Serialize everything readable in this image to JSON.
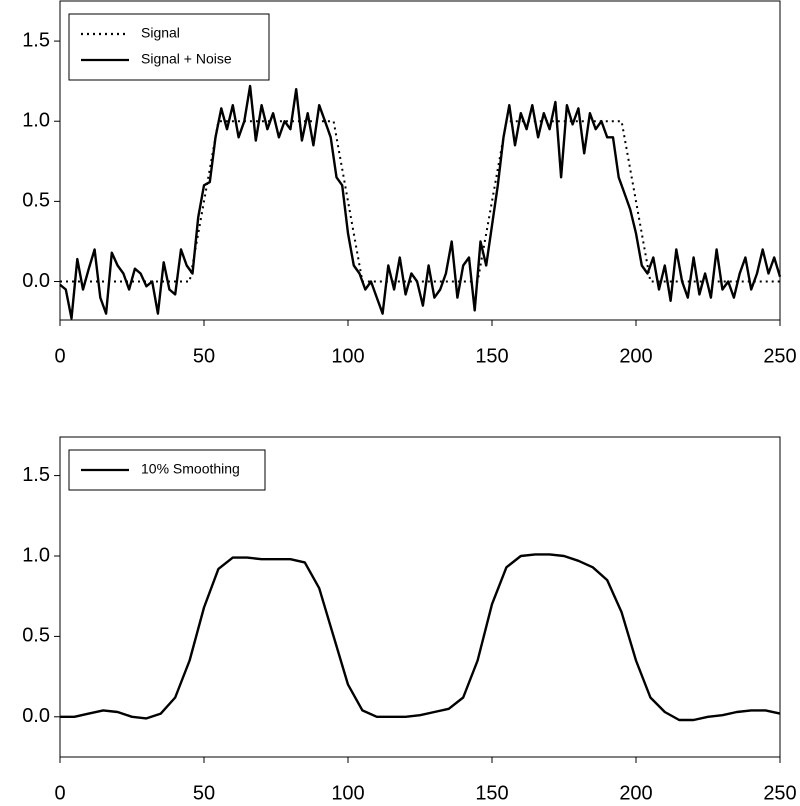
{
  "chart_data": [
    {
      "type": "line",
      "xlim": [
        0,
        250
      ],
      "xticks": [
        0,
        50,
        100,
        150,
        200,
        250
      ],
      "ylim": [
        -0.24,
        1.75
      ],
      "yticks": [
        {
          "value": 0,
          "label": "0.0"
        },
        {
          "value": 0.5,
          "label": "0.5"
        },
        {
          "value": 1,
          "label": "1.0"
        },
        {
          "value": 1.5,
          "label": "1.5"
        }
      ],
      "legend": "upper left",
      "series": [
        {
          "name": "Signal",
          "color": "#000000",
          "style": "dotted",
          "x": [
            0,
            45,
            55,
            95,
            105,
            145,
            155,
            195,
            205,
            250
          ],
          "values": [
            0,
            0,
            1,
            1,
            0,
            0,
            1,
            1,
            0,
            0
          ]
        },
        {
          "name": "Signal + Noise",
          "color": "#000000",
          "style": "solid",
          "x": [
            0,
            2,
            4,
            6,
            8,
            10,
            12,
            14,
            16,
            18,
            20,
            22,
            24,
            26,
            28,
            30,
            32,
            34,
            36,
            38,
            40,
            42,
            44,
            46,
            48,
            50,
            52,
            54,
            56,
            58,
            60,
            62,
            64,
            66,
            68,
            70,
            72,
            74,
            76,
            78,
            80,
            82,
            84,
            86,
            88,
            90,
            92,
            94,
            96,
            98,
            100,
            102,
            104,
            106,
            108,
            110,
            112,
            114,
            116,
            118,
            120,
            122,
            124,
            126,
            128,
            130,
            132,
            134,
            136,
            138,
            140,
            142,
            144,
            146,
            148,
            150,
            152,
            154,
            156,
            158,
            160,
            162,
            164,
            166,
            168,
            170,
            172,
            174,
            176,
            178,
            180,
            182,
            184,
            186,
            188,
            190,
            192,
            194,
            196,
            198,
            200,
            202,
            204,
            206,
            208,
            210,
            212,
            214,
            216,
            218,
            220,
            222,
            224,
            226,
            228,
            230,
            232,
            234,
            236,
            238,
            240,
            242,
            244,
            246,
            248,
            250
          ],
          "values": [
            -0.02,
            -0.05,
            -0.23,
            0.14,
            -0.05,
            0.08,
            0.2,
            -0.1,
            -0.2,
            0.18,
            0.1,
            0.05,
            -0.05,
            0.08,
            0.05,
            -0.03,
            0.0,
            -0.2,
            0.12,
            -0.05,
            -0.08,
            0.2,
            0.1,
            0.05,
            0.4,
            0.6,
            0.62,
            0.9,
            1.08,
            0.95,
            1.1,
            0.9,
            1.0,
            1.22,
            0.88,
            1.1,
            0.95,
            1.05,
            0.9,
            1.0,
            0.95,
            1.2,
            0.88,
            1.05,
            0.85,
            1.1,
            1.0,
            0.9,
            0.65,
            0.6,
            0.3,
            0.1,
            0.05,
            -0.05,
            0.0,
            -0.1,
            -0.2,
            0.1,
            -0.05,
            0.15,
            -0.08,
            0.05,
            0.0,
            -0.15,
            0.1,
            -0.1,
            -0.05,
            0.05,
            0.25,
            -0.1,
            0.1,
            0.15,
            -0.18,
            0.25,
            0.1,
            0.35,
            0.6,
            0.9,
            1.1,
            0.85,
            1.05,
            0.95,
            1.1,
            0.9,
            1.05,
            0.95,
            1.12,
            0.65,
            1.1,
            0.98,
            1.08,
            0.8,
            1.05,
            0.95,
            1.0,
            0.9,
            0.9,
            0.65,
            0.55,
            0.45,
            0.3,
            0.1,
            0.05,
            0.15,
            -0.05,
            0.1,
            -0.12,
            0.2,
            0.0,
            -0.1,
            0.15,
            -0.08,
            0.05,
            -0.1,
            0.2,
            -0.05,
            0.0,
            -0.1,
            0.05,
            0.15,
            -0.05,
            0.05,
            0.2,
            0.05,
            0.15,
            0.03
          ]
        }
      ]
    },
    {
      "type": "line",
      "xlim": [
        0,
        250
      ],
      "xticks": [
        0,
        50,
        100,
        150,
        200,
        250
      ],
      "ylim": [
        -0.25,
        1.74
      ],
      "yticks": [
        {
          "value": 0,
          "label": "0.0"
        },
        {
          "value": 0.5,
          "label": "0.5"
        },
        {
          "value": 1,
          "label": "1.0"
        },
        {
          "value": 1.5,
          "label": "1.5"
        }
      ],
      "legend": "upper left",
      "series": [
        {
          "name": "10% Smoothing",
          "color": "#000000",
          "style": "solid",
          "x": [
            0,
            5,
            10,
            15,
            20,
            25,
            30,
            35,
            40,
            45,
            50,
            55,
            60,
            65,
            70,
            75,
            80,
            85,
            90,
            95,
            100,
            105,
            110,
            115,
            120,
            125,
            130,
            135,
            140,
            145,
            150,
            155,
            160,
            165,
            170,
            175,
            180,
            185,
            190,
            195,
            200,
            205,
            210,
            215,
            220,
            225,
            230,
            235,
            240,
            245,
            250
          ],
          "values": [
            0,
            0,
            0.02,
            0.04,
            0.03,
            0.0,
            -0.01,
            0.02,
            0.12,
            0.35,
            0.68,
            0.92,
            0.99,
            0.99,
            0.98,
            0.98,
            0.98,
            0.96,
            0.8,
            0.5,
            0.2,
            0.04,
            0.0,
            0.0,
            0.0,
            0.01,
            0.03,
            0.05,
            0.12,
            0.35,
            0.7,
            0.93,
            1.0,
            1.01,
            1.01,
            1.0,
            0.97,
            0.93,
            0.85,
            0.65,
            0.35,
            0.12,
            0.03,
            -0.02,
            -0.02,
            0.0,
            0.01,
            0.03,
            0.04,
            0.04,
            0.02
          ]
        }
      ]
    }
  ]
}
